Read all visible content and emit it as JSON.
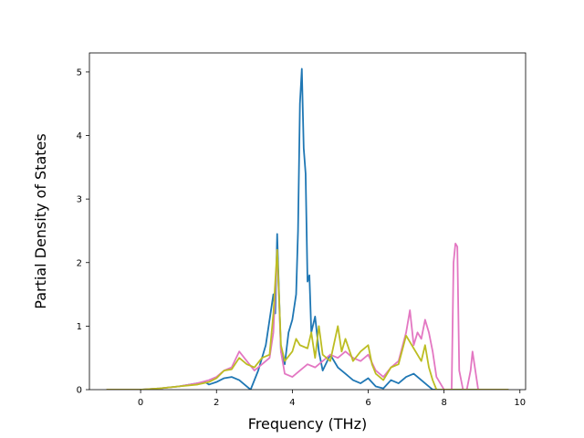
{
  "chart_data": {
    "type": "line",
    "xlabel": "Frequency (THz)",
    "ylabel": "Partial Density of States",
    "xlim": [
      -1.35,
      10.15
    ],
    "ylim": [
      0,
      5.3
    ],
    "xticks": [
      0,
      2,
      4,
      6,
      8,
      10
    ],
    "yticks": [
      0,
      1,
      2,
      3,
      4,
      5
    ],
    "grid": false,
    "series": [
      {
        "color": "#1f77b4",
        "x": [
          -0.9,
          0.0,
          0.5,
          1.0,
          1.5,
          1.7,
          1.8,
          2.0,
          2.2,
          2.4,
          2.6,
          2.8,
          2.9,
          3.1,
          3.3,
          3.5,
          3.55,
          3.6,
          3.65,
          3.7,
          3.8,
          3.9,
          4.0,
          4.1,
          4.15,
          4.2,
          4.25,
          4.3,
          4.35,
          4.4,
          4.45,
          4.5,
          4.6,
          4.7,
          4.8,
          5.0,
          5.2,
          5.4,
          5.6,
          5.8,
          6.0,
          6.2,
          6.4,
          6.6,
          6.8,
          7.0,
          7.2,
          7.4,
          7.6,
          7.7,
          7.8,
          8.0,
          8.5,
          9.0,
          9.7
        ],
        "values": [
          0,
          0.0,
          0.02,
          0.05,
          0.1,
          0.12,
          0.08,
          0.12,
          0.18,
          0.2,
          0.15,
          0.05,
          0.0,
          0.3,
          0.7,
          1.5,
          1.2,
          2.45,
          1.5,
          0.6,
          0.4,
          0.9,
          1.1,
          1.5,
          2.5,
          4.5,
          5.05,
          3.8,
          3.4,
          1.7,
          1.8,
          0.9,
          1.15,
          0.6,
          0.3,
          0.55,
          0.35,
          0.25,
          0.15,
          0.1,
          0.18,
          0.05,
          0.02,
          0.15,
          0.1,
          0.2,
          0.25,
          0.15,
          0.05,
          0.0,
          0.0,
          0.0,
          0.0,
          0.0,
          0.0
        ]
      },
      {
        "color": "#e377c2",
        "x": [
          -0.9,
          0.0,
          0.5,
          1.0,
          1.5,
          1.8,
          2.0,
          2.2,
          2.4,
          2.6,
          2.8,
          3.0,
          3.2,
          3.4,
          3.5,
          3.6,
          3.7,
          3.8,
          4.0,
          4.2,
          4.4,
          4.6,
          4.8,
          5.0,
          5.2,
          5.4,
          5.6,
          5.8,
          6.0,
          6.2,
          6.4,
          6.6,
          6.8,
          7.0,
          7.1,
          7.2,
          7.3,
          7.4,
          7.5,
          7.6,
          7.7,
          7.8,
          8.0,
          8.2,
          8.25,
          8.3,
          8.35,
          8.4,
          8.5,
          8.6,
          8.7,
          8.75,
          8.8,
          8.9,
          9.2,
          9.7
        ],
        "values": [
          0,
          0.0,
          0.02,
          0.05,
          0.1,
          0.15,
          0.2,
          0.3,
          0.35,
          0.6,
          0.45,
          0.3,
          0.4,
          0.5,
          0.9,
          2.2,
          0.6,
          0.25,
          0.2,
          0.3,
          0.4,
          0.35,
          0.45,
          0.55,
          0.5,
          0.6,
          0.5,
          0.45,
          0.55,
          0.3,
          0.2,
          0.35,
          0.45,
          0.9,
          1.25,
          0.7,
          0.9,
          0.8,
          1.1,
          0.9,
          0.6,
          0.2,
          0.0,
          0.0,
          2.0,
          2.3,
          2.25,
          0.3,
          0.0,
          0.0,
          0.3,
          0.6,
          0.4,
          0.0,
          0.0,
          0.0
        ]
      },
      {
        "color": "#bcbd22",
        "x": [
          -0.9,
          0.0,
          0.5,
          1.0,
          1.5,
          1.8,
          2.0,
          2.2,
          2.4,
          2.6,
          2.8,
          3.0,
          3.2,
          3.4,
          3.5,
          3.6,
          3.7,
          3.8,
          4.0,
          4.1,
          4.2,
          4.4,
          4.5,
          4.6,
          4.7,
          4.8,
          5.0,
          5.2,
          5.3,
          5.4,
          5.6,
          5.8,
          6.0,
          6.1,
          6.2,
          6.4,
          6.6,
          6.8,
          7.0,
          7.2,
          7.4,
          7.5,
          7.6,
          7.7,
          7.8,
          8.0,
          8.5,
          9.0,
          9.7
        ],
        "values": [
          0,
          0.0,
          0.02,
          0.05,
          0.08,
          0.12,
          0.18,
          0.3,
          0.32,
          0.5,
          0.4,
          0.35,
          0.5,
          0.55,
          1.2,
          2.2,
          0.7,
          0.45,
          0.6,
          0.8,
          0.7,
          0.65,
          0.9,
          0.5,
          1.0,
          0.55,
          0.45,
          1.0,
          0.6,
          0.8,
          0.45,
          0.6,
          0.7,
          0.4,
          0.25,
          0.15,
          0.35,
          0.4,
          0.85,
          0.65,
          0.45,
          0.7,
          0.35,
          0.15,
          0.0,
          0.0,
          0.0,
          0.0,
          0.0
        ]
      }
    ]
  }
}
